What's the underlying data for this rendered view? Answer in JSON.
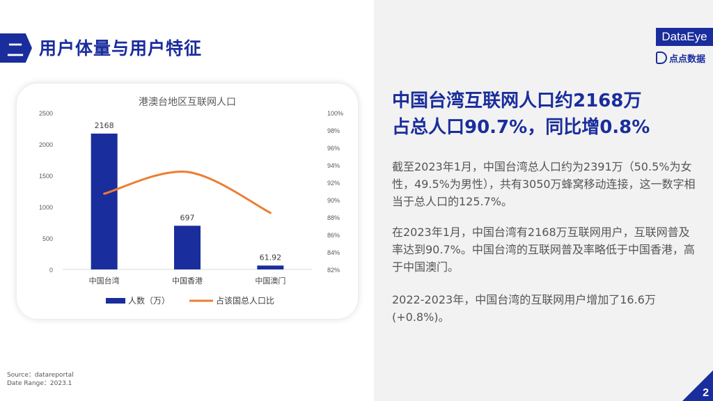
{
  "section": {
    "number": "二",
    "title": "用户体量与用户特征"
  },
  "brand": {
    "logo_text": "DataEye",
    "sub_logo_text": "点点数据"
  },
  "chart_data": {
    "type": "bar",
    "title": "港澳台地区互联网人口",
    "categories": [
      "中国台湾",
      "中国香港",
      "中国澳门"
    ],
    "series": [
      {
        "name": "人数（万）",
        "type": "bar",
        "axis": "left",
        "values": [
          2168,
          697,
          61.92
        ],
        "data_labels": [
          "2168",
          "697",
          "61.92"
        ],
        "color": "#1a2d9c"
      },
      {
        "name": "占该国总人口比",
        "type": "line",
        "axis": "right",
        "values": [
          90.7,
          93.2,
          88.5
        ],
        "color": "#ed7d31"
      }
    ],
    "y_left": {
      "min": 0,
      "max": 2500,
      "ticks": [
        "0",
        "500",
        "1000",
        "1500",
        "2000",
        "2500"
      ]
    },
    "y_right": {
      "min": 82,
      "max": 100,
      "ticks": [
        "82%",
        "84%",
        "86%",
        "88%",
        "90%",
        "92%",
        "94%",
        "96%",
        "98%",
        "100%"
      ]
    },
    "grid": false,
    "legend": "bottom"
  },
  "headline": {
    "line1": "中国台湾互联网人口约2168万",
    "line2": "占总人口90.7%，同比增0.8%"
  },
  "paragraphs": [
    "截至2023年1月，中国台湾总人口约为2391万（50.5%为女性，49.5%为男性），共有3050万蜂窝移动连接，这一数字相当于总人口的125.7%。",
    "在2023年1月，中国台湾有2168万互联网用户，互联网普及率达到90.7%。中国台湾的互联网普及率略低于中国香港，高于中国澳门。",
    "2022-2023年，中国台湾的互联网用户增加了16.6万(+0.8%)。"
  ],
  "source": {
    "line1": "Source：datareportal",
    "line2": "Date Range：2023.1"
  },
  "page_number": "2"
}
